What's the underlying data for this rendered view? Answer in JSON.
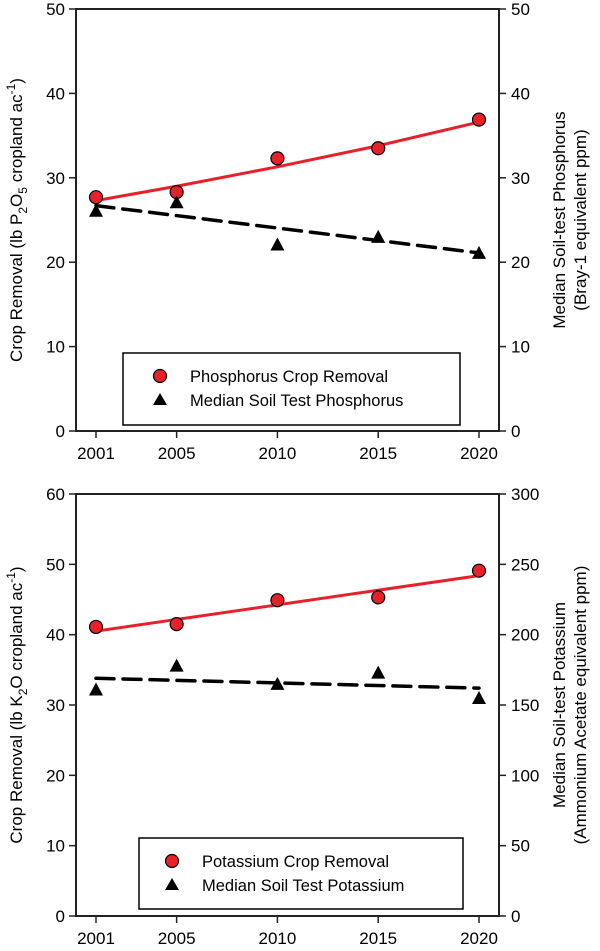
{
  "colors": {
    "removal": "#e8202a",
    "removal_marker": "#e8202a",
    "soil_test": "#000000",
    "axis": "#222222"
  },
  "chart_data": [
    {
      "type": "line",
      "panel": "top",
      "title": "",
      "x": [
        2001,
        2005,
        2010,
        2015,
        2020
      ],
      "x_tick_labels": [
        "2001",
        "2005",
        "2010",
        "2015",
        "2020"
      ],
      "xlim": [
        2000,
        2021.2
      ],
      "ylabel": "Crop Removal (lb P2O5 cropland ac-1)",
      "ylabel_parts": {
        "pre": "Crop Removal (lb P",
        "sub1": "2",
        "mid": "O",
        "sub2": "5",
        "post": " cropland ac",
        "sup": "-1",
        "end": ")"
      },
      "ylim": [
        0,
        50
      ],
      "y_ticks": [
        0,
        10,
        20,
        30,
        40,
        50
      ],
      "y2label_line1": "Median Soil-test Phosphorus",
      "y2label_line2": "(Bray-1 equivalent ppm)",
      "y2lim": [
        0,
        50
      ],
      "y2_ticks": [
        0,
        10,
        20,
        30,
        40,
        50
      ],
      "grid": false,
      "legend_placement": "bottom-center",
      "series": [
        {
          "name": "Phosphorus Crop Removal",
          "axis": "left",
          "marker": "circle",
          "values": [
            27.7,
            28.3,
            32.3,
            33.5,
            36.9
          ],
          "trend": {
            "style": "solid",
            "x": [
              2001,
              2005,
              2010,
              2015,
              2020
            ],
            "values": [
              27.3,
              29.0,
              31.3,
              33.8,
              36.6
            ]
          }
        },
        {
          "name": "Median Soil Test Phosphorus",
          "axis": "right",
          "marker": "triangle",
          "values": [
            26.1,
            27.1,
            22.1,
            23.0,
            21.1
          ],
          "trend": {
            "style": "dashed",
            "x": [
              2001,
              2020
            ],
            "values": [
              26.7,
              21.1
            ]
          }
        }
      ]
    },
    {
      "type": "line",
      "panel": "bottom",
      "title": "",
      "x": [
        2001,
        2005,
        2010,
        2015,
        2020
      ],
      "x_tick_labels": [
        "2001",
        "2005",
        "2010",
        "2015",
        "2020"
      ],
      "xlim": [
        2000,
        2021.2
      ],
      "ylabel": "Crop Removal (lb K2O cropland ac-1)",
      "ylabel_parts": {
        "pre": "Crop Removal (lb K",
        "sub1": "2",
        "mid": "O",
        "sub2": "",
        "post": " cropland ac",
        "sup": "-1",
        "end": ")"
      },
      "ylim": [
        0,
        60
      ],
      "y_ticks": [
        0,
        10,
        20,
        30,
        40,
        50,
        60
      ],
      "y2label_line1": "Median Soil-test Potassium",
      "y2label_line2": "(Ammonium Acetate equivalent ppm)",
      "y2lim": [
        0,
        300
      ],
      "y2_ticks": [
        0,
        50,
        100,
        150,
        200,
        250,
        300
      ],
      "grid": false,
      "legend_placement": "bottom-center",
      "series": [
        {
          "name": "Potassium Crop Removal",
          "axis": "left",
          "marker": "circle",
          "values": [
            41.1,
            41.5,
            44.9,
            45.3,
            49.1
          ],
          "trend": {
            "style": "solid",
            "x": [
              2001,
              2020
            ],
            "values": [
              40.5,
              48.4
            ]
          }
        },
        {
          "name": "Median Soil Test Potassium",
          "axis": "right",
          "marker": "triangle",
          "values": [
            161,
            178,
            165,
            173,
            155
          ],
          "trend": {
            "style": "dashed",
            "x": [
              2001,
              2020
            ],
            "values": [
              169,
              162
            ]
          }
        }
      ]
    }
  ]
}
